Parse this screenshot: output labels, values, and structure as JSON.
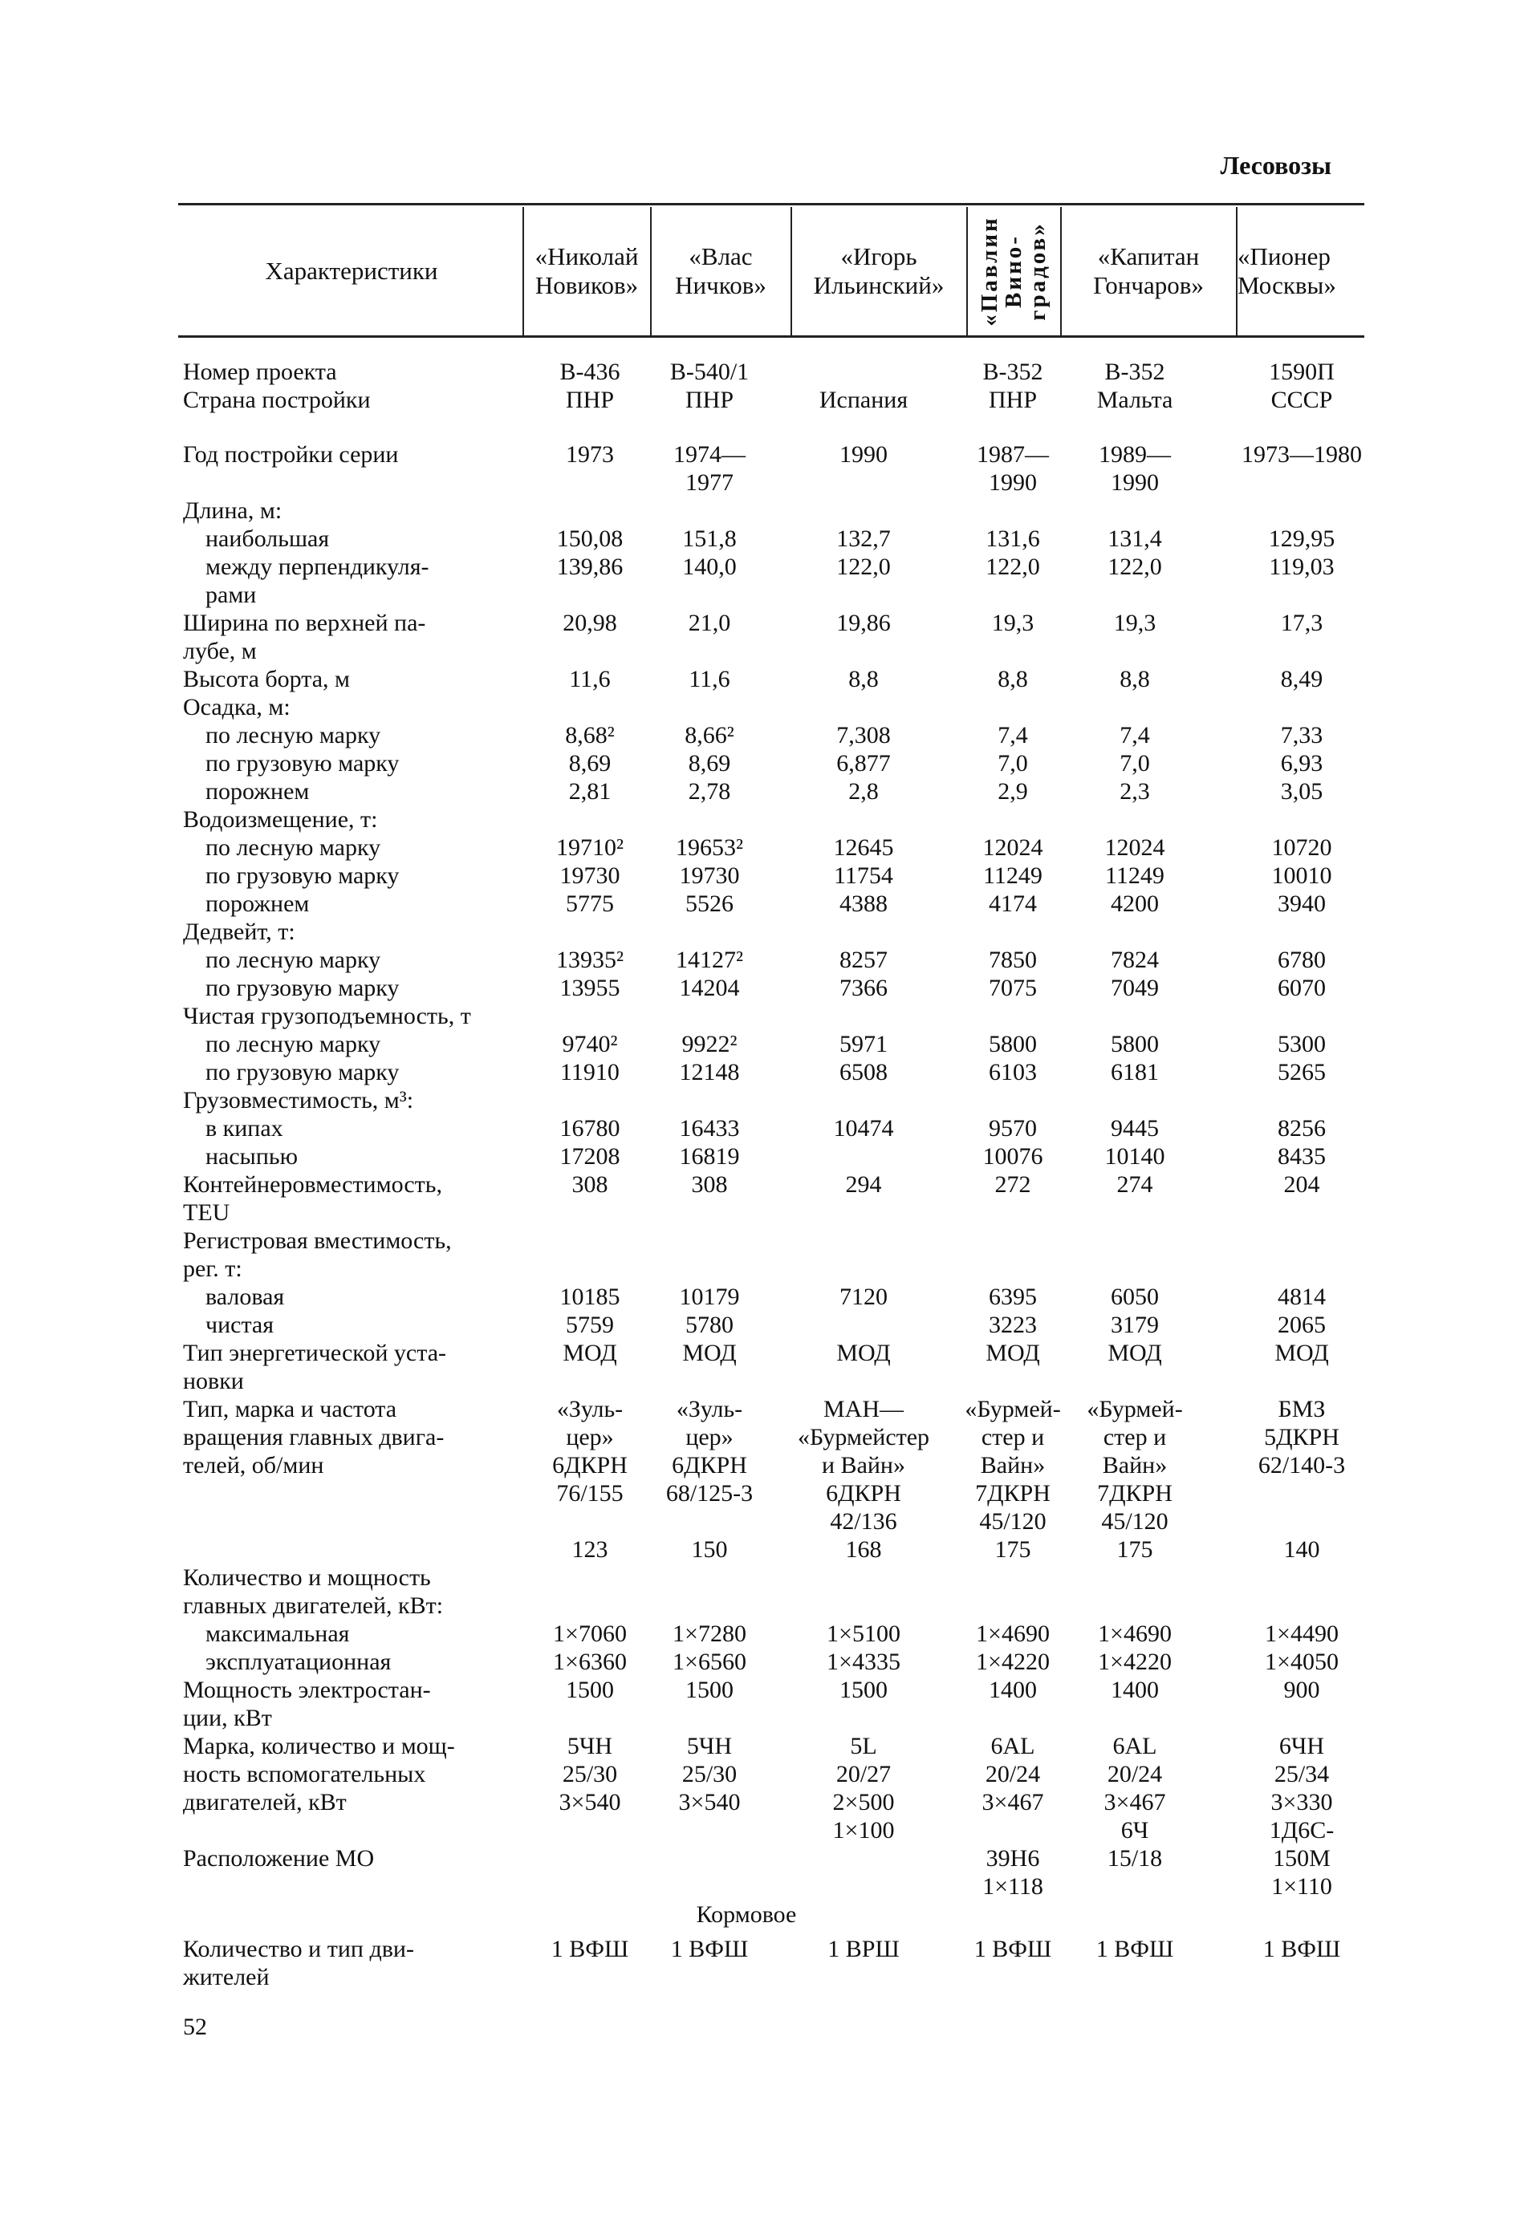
{
  "section_title": "Лесовозы",
  "header": {
    "label": "Характеристики",
    "columns": [
      "«Николай\nНовиков»",
      "«Влас\nНичков»",
      "«Игорь\nИльинский»",
      "«Павлин\nВино-\nградов»",
      "«Капитан\nГончаров»",
      "«Пионер\nМосквы»"
    ]
  },
  "rows": [
    {
      "label": "Номер проекта",
      "values": [
        "В-436",
        "В-540/1",
        "",
        "В-352",
        "В-352",
        "1590П"
      ]
    },
    {
      "label": "Страна постройки",
      "values": [
        "ПНР",
        "ПНР",
        "Испания",
        "ПНР",
        "Мальта",
        "СССР"
      ]
    },
    {
      "label": "Год постройки серии",
      "values": [
        "1973",
        "1974—\n1977",
        "1990",
        "1987—\n1990",
        "1989—\n1990",
        "1973—1980"
      ],
      "gap": true,
      "lines": 2
    },
    {
      "label": "Длина, м:",
      "values": []
    },
    {
      "label": "наибольшая",
      "indent": true,
      "values": [
        "150,08",
        "151,8",
        "132,7",
        "131,6",
        "131,4",
        "129,95"
      ]
    },
    {
      "label": "между перпендикуля-\nрами",
      "indent": true,
      "values": [
        "139,86",
        "140,0",
        "122,0",
        "122,0",
        "122,0",
        "119,03"
      ],
      "lines": 2
    },
    {
      "label": "Ширина по верхней па-\nлубе, м",
      "values": [
        "20,98",
        "21,0",
        "19,86",
        "19,3",
        "19,3",
        "17,3"
      ],
      "lines": 2
    },
    {
      "label": "Высота борта, м",
      "values": [
        "11,6",
        "11,6",
        "8,8",
        "8,8",
        "8,8",
        "8,49"
      ]
    },
    {
      "label": "Осадка, м:",
      "values": []
    },
    {
      "label": "по лесную марку",
      "indent": true,
      "values": [
        "8,68²",
        "8,66²",
        "7,308",
        "7,4",
        "7,4",
        "7,33"
      ]
    },
    {
      "label": "по грузовую марку",
      "indent": true,
      "values": [
        "8,69",
        "8,69",
        "6,877",
        "7,0",
        "7,0",
        "6,93"
      ]
    },
    {
      "label": "порожнем",
      "indent": true,
      "values": [
        "2,81",
        "2,78",
        "2,8",
        "2,9",
        "2,3",
        "3,05"
      ]
    },
    {
      "label": "Водоизмещение, т:",
      "values": []
    },
    {
      "label": "по лесную марку",
      "indent": true,
      "values": [
        "19710²",
        "19653²",
        "12645",
        "12024",
        "12024",
        "10720"
      ]
    },
    {
      "label": "по грузовую марку",
      "indent": true,
      "values": [
        "19730",
        "19730",
        "11754",
        "11249",
        "11249",
        "10010"
      ]
    },
    {
      "label": "порожнем",
      "indent": true,
      "values": [
        "5775",
        "5526",
        "4388",
        "4174",
        "4200",
        "3940"
      ]
    },
    {
      "label": "Дедвейт, т:",
      "values": []
    },
    {
      "label": "по лесную марку",
      "indent": true,
      "values": [
        "13935²",
        "14127²",
        "8257",
        "7850",
        "7824",
        "6780"
      ]
    },
    {
      "label": "по грузовую марку",
      "indent": true,
      "values": [
        "13955",
        "14204",
        "7366",
        "7075",
        "7049",
        "6070"
      ]
    },
    {
      "label": "Чистая грузоподъемность, т",
      "values": []
    },
    {
      "label": "по лесную марку",
      "indent": true,
      "values": [
        "9740²",
        "9922²",
        "5971",
        "5800",
        "5800",
        "5300"
      ]
    },
    {
      "label": "по грузовую марку",
      "indent": true,
      "values": [
        "11910",
        "12148",
        "6508",
        "6103",
        "6181",
        "5265"
      ]
    },
    {
      "label": "Грузовместимость, м³:",
      "values": []
    },
    {
      "label": "в кипах",
      "indent": true,
      "values": [
        "16780",
        "16433",
        "10474",
        "9570",
        "9445",
        "8256"
      ]
    },
    {
      "label": "насыпью",
      "indent": true,
      "values": [
        "17208",
        "16819",
        "",
        "10076",
        "10140",
        "8435"
      ]
    },
    {
      "label": "Контейнеровместимость,\nTEU",
      "values": [
        "308",
        "308",
        "294",
        "272",
        "274",
        "204"
      ],
      "lines": 2
    },
    {
      "label": "Регистровая вместимость,\nрег. т:",
      "values": [],
      "lines": 2
    },
    {
      "label": "валовая",
      "indent": true,
      "values": [
        "10185",
        "10179",
        "7120",
        "6395",
        "6050",
        "4814"
      ]
    },
    {
      "label": "чистая",
      "indent": true,
      "values": [
        "5759",
        "5780",
        "",
        "3223",
        "3179",
        "2065"
      ]
    },
    {
      "label": "Тип энергетической уста-\nновки",
      "values": [
        "МОД",
        "МОД",
        "МОД",
        "МОД",
        "МОД",
        "МОД"
      ],
      "lines": 2
    },
    {
      "label": "Тип, марка и частота\nвращения главных двига-\nтелей, об/мин",
      "values": [
        "«Зуль-\nцер»\n6ДКРН\n76/155\n\n123",
        "«Зуль-\nцер»\n6ДКРН\n68/125-3\n\n150",
        "МАН—\n«Бурмейстер\nи Вайн»\n6ДКРН\n42/136\n168",
        "«Бурмей-\nстер и\nВайн»\n7ДКРН\n45/120\n175",
        "«Бурмей-\nстер и\nВайн»\n7ДКРН\n45/120\n175",
        "БМЗ\n5ДКРН\n62/140-3\n\n\n140"
      ],
      "lines": 6
    },
    {
      "label": "Количество и мощность\nглавных двигателей, кВт:",
      "values": [],
      "lines": 2
    },
    {
      "label": "максимальная",
      "indent": true,
      "values": [
        "1×7060",
        "1×7280",
        "1×5100",
        "1×4690",
        "1×4690",
        "1×4490"
      ]
    },
    {
      "label": "эксплуатационная",
      "indent": true,
      "values": [
        "1×6360",
        "1×6560",
        "1×4335",
        "1×4220",
        "1×4220",
        "1×4050"
      ]
    },
    {
      "label": "Мощность электростан-\nции, кВт",
      "values": [
        "1500",
        "1500",
        "1500",
        "1400",
        "1400",
        "900"
      ],
      "lines": 2
    },
    {
      "label": "Марка, количество и мощ-\nность вспомогательных\nдвигателей, кВт\n\nРасположение МО",
      "values": [
        "5ЧН\n25/30\n3×540",
        "5ЧН\n25/30\n3×540",
        "5L\n20/27\n2×500\n1×100",
        "6AL\n20/24\n3×467\n\n39Н6\n1×118",
        "6AL\n20/24\n3×467\n6Ч\n15/18",
        "6ЧН\n25/34\n3×330\n1Д6С-\n150М\n1×110"
      ],
      "lines": 6
    },
    {
      "label": "",
      "note": "Кормовое",
      "values": [],
      "lines": 1
    },
    {
      "label": "Количество и тип дви-\nжителей",
      "values": [
        "1 ВФШ",
        "1 ВФШ",
        "1 ВРШ",
        "1 ВФШ",
        "1 ВФШ",
        "1 ВФШ"
      ],
      "lines": 2,
      "gapSmall": true
    }
  ],
  "page_number": "52"
}
